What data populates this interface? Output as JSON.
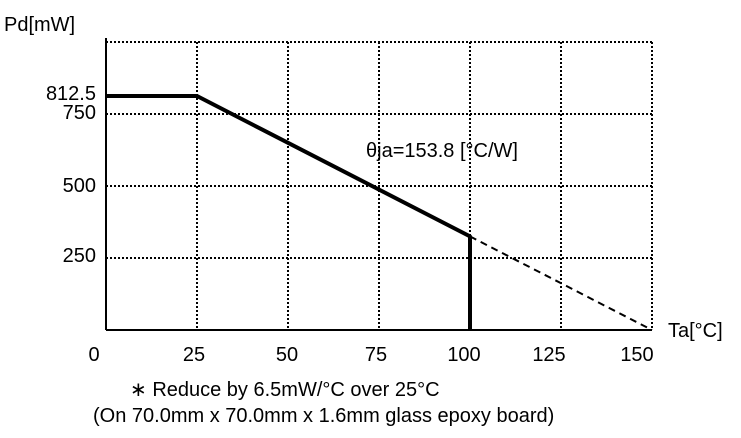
{
  "chart_data": {
    "type": "line",
    "ylabel": "Pd[mW]",
    "xlabel": "Ta[°C]",
    "xlim": [
      0,
      150
    ],
    "ylim": [
      0,
      1000
    ],
    "x_ticks": [
      "0",
      "25",
      "50",
      "75",
      "100",
      "125",
      "150"
    ],
    "y_ticks": [
      "250",
      "500",
      "750",
      "812.5"
    ],
    "grid": true,
    "annotation": "θja=153.8 [°C/W]",
    "series": [
      {
        "style": "solid",
        "x": [
          0,
          25,
          100,
          100
        ],
        "y": [
          812.5,
          812.5,
          325,
          0
        ]
      },
      {
        "style": "dashed",
        "x": [
          100,
          150
        ],
        "y": [
          325,
          0
        ]
      }
    ]
  },
  "notes": {
    "line1": "∗ Reduce by 6.5mW/°C over 25°C",
    "line2": "(On 70.0mm x 70.0mm x 1.6mm glass epoxy board)"
  }
}
